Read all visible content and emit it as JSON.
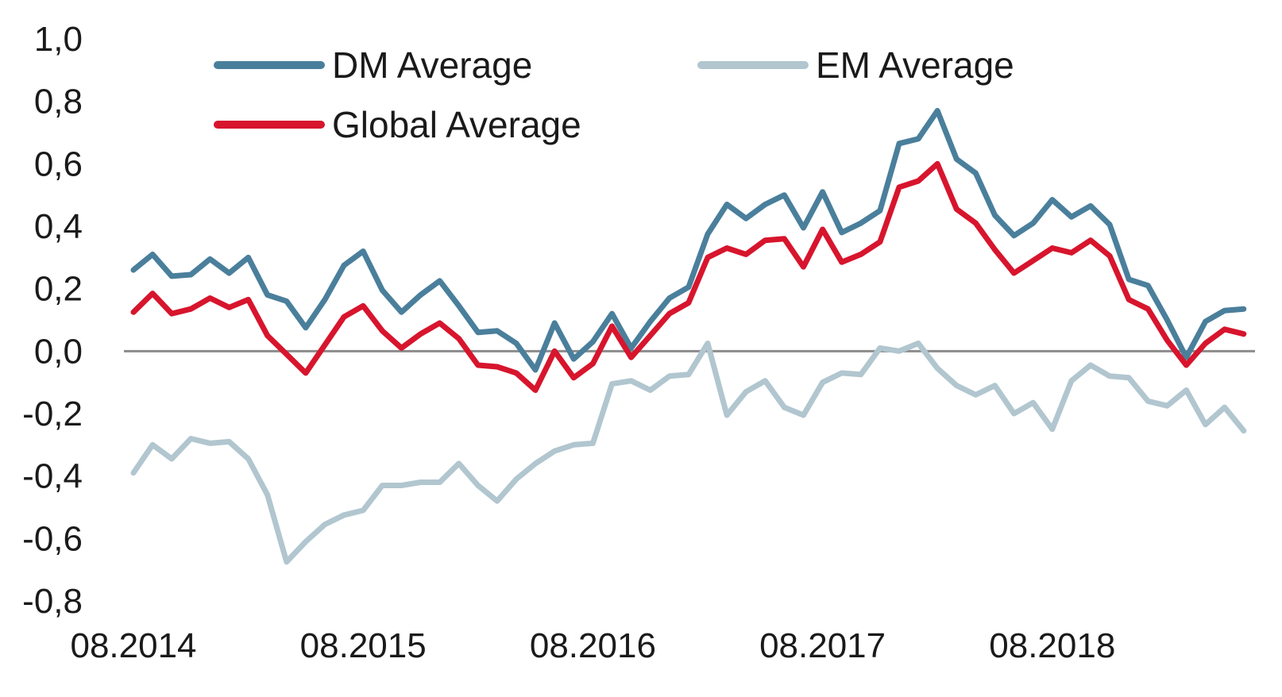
{
  "chart_data": {
    "type": "line",
    "title": "",
    "xlabel": "",
    "ylabel": "",
    "ylim": [
      -0.8,
      1.0
    ],
    "yticks": [
      1.0,
      0.8,
      0.6,
      0.4,
      0.2,
      0.0,
      -0.2,
      -0.4,
      -0.6,
      -0.8
    ],
    "ytick_labels": [
      "1,0",
      "0,8",
      "0,6",
      "0,4",
      "0,2",
      "0,0",
      "-0,2",
      "-0,4",
      "-0,6",
      "-0,8"
    ],
    "x_start": "08.2014",
    "x_end": "06.2019",
    "xtick_labels": [
      "08.2014",
      "08.2015",
      "08.2016",
      "08.2017",
      "08.2018"
    ],
    "grid": false,
    "zero_line": true,
    "legend_position": "top",
    "series": [
      {
        "name": "DM Average",
        "color": "#4a7f9c",
        "values": [
          0.26,
          0.31,
          0.24,
          0.245,
          0.295,
          0.25,
          0.3,
          0.18,
          0.16,
          0.075,
          0.165,
          0.275,
          0.32,
          0.195,
          0.125,
          0.18,
          0.225,
          0.145,
          0.06,
          0.065,
          0.025,
          -0.06,
          0.09,
          -0.025,
          0.03,
          0.12,
          0.01,
          0.095,
          0.17,
          0.205,
          0.375,
          0.47,
          0.425,
          0.47,
          0.5,
          0.395,
          0.51,
          0.38,
          0.41,
          0.45,
          0.665,
          0.68,
          0.77,
          0.615,
          0.57,
          0.435,
          0.37,
          0.41,
          0.485,
          0.43,
          0.465,
          0.405,
          0.23,
          0.21,
          0.1,
          -0.02,
          0.095,
          0.13,
          0.135
        ]
      },
      {
        "name": "EM Average",
        "color": "#b1c6cf",
        "values": [
          -0.39,
          -0.3,
          -0.345,
          -0.28,
          -0.295,
          -0.29,
          -0.345,
          -0.46,
          -0.675,
          -0.61,
          -0.555,
          -0.525,
          -0.51,
          -0.43,
          -0.43,
          -0.42,
          -0.42,
          -0.36,
          -0.43,
          -0.48,
          -0.41,
          -0.36,
          -0.32,
          -0.3,
          -0.295,
          -0.105,
          -0.095,
          -0.125,
          -0.08,
          -0.075,
          0.025,
          -0.205,
          -0.13,
          -0.095,
          -0.18,
          -0.205,
          -0.1,
          -0.07,
          -0.075,
          0.01,
          0.0,
          0.025,
          -0.055,
          -0.11,
          -0.14,
          -0.11,
          -0.2,
          -0.165,
          -0.25,
          -0.095,
          -0.045,
          -0.08,
          -0.085,
          -0.16,
          -0.175,
          -0.125,
          -0.235,
          -0.18,
          -0.255
        ]
      },
      {
        "name": "Global Average",
        "color": "#d7152d",
        "values": [
          0.125,
          0.185,
          0.12,
          0.135,
          0.17,
          0.14,
          0.165,
          0.05,
          -0.01,
          -0.07,
          0.02,
          0.11,
          0.145,
          0.065,
          0.01,
          0.055,
          0.09,
          0.04,
          -0.045,
          -0.05,
          -0.07,
          -0.125,
          0.0,
          -0.085,
          -0.04,
          0.08,
          -0.02,
          0.05,
          0.12,
          0.155,
          0.3,
          0.33,
          0.31,
          0.355,
          0.36,
          0.27,
          0.39,
          0.285,
          0.31,
          0.35,
          0.525,
          0.545,
          0.6,
          0.455,
          0.41,
          0.325,
          0.25,
          0.29,
          0.33,
          0.315,
          0.355,
          0.305,
          0.165,
          0.135,
          0.035,
          -0.045,
          0.025,
          0.07,
          0.055
        ]
      }
    ]
  }
}
